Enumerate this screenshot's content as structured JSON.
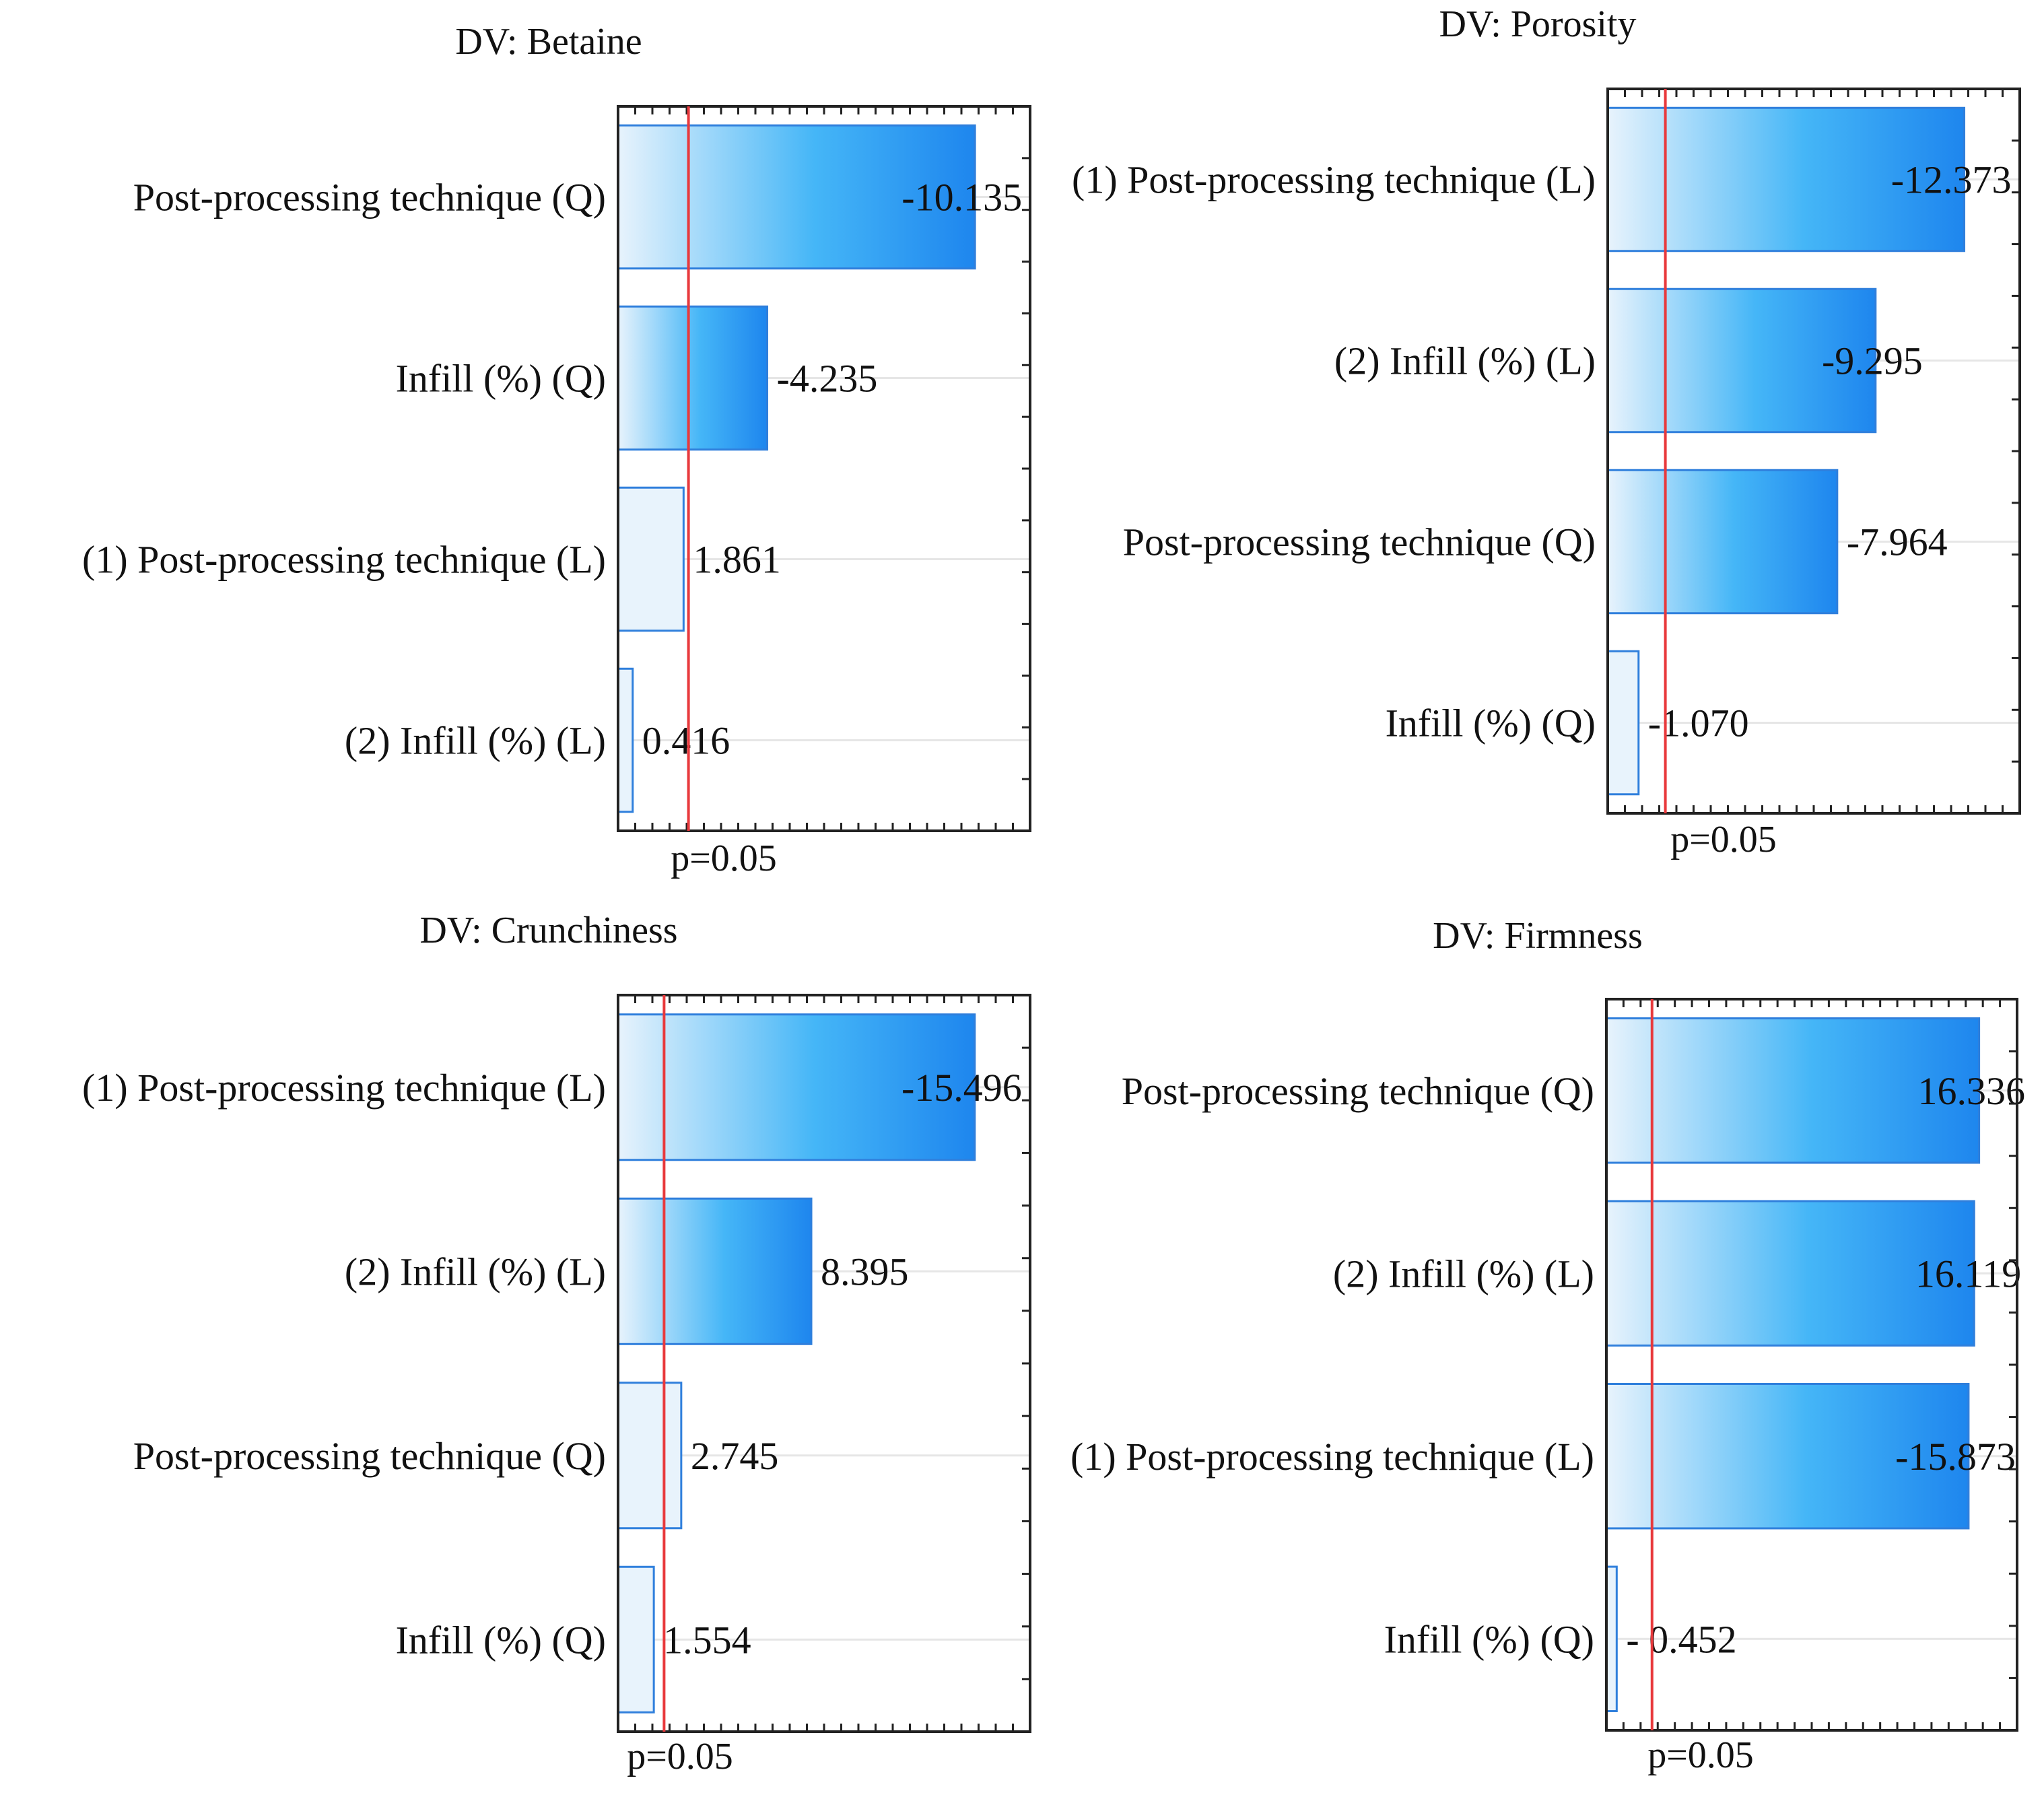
{
  "colors": {
    "bar_light": "#e8f3fc",
    "bar_mid": "#45b6f7",
    "bar_dark": "#1e86ee",
    "bar_stroke": "#2f7fdc",
    "reference_line": "#e8393c",
    "frame": "#222222",
    "gridline": "#e6e6e6"
  },
  "chart_data": [
    {
      "type": "bar",
      "orientation": "horizontal",
      "title": "DV: Betaine",
      "reference_label": "p=0.05",
      "reference_value": 2.0,
      "xlim": [
        0,
        11.7
      ],
      "grid": true,
      "categories": [
        "Post-processing technique (Q)",
        "Infill (%) (Q)",
        "(1) Post-processing technique (L)",
        "(2) Infill (%) (L)"
      ],
      "value_labels": [
        "-10.135",
        "-4.235",
        "1.861",
        "0.416"
      ],
      "values": [
        -10.135,
        -4.235,
        1.861,
        0.416
      ]
    },
    {
      "type": "bar",
      "orientation": "horizontal",
      "title": "DV: Porosity",
      "reference_label": "p=0.05",
      "reference_value": 2.0,
      "xlim": [
        0,
        14.3
      ],
      "grid": true,
      "categories": [
        "(1) Post-processing technique (L)",
        "(2) Infill (%) (L)",
        "Post-processing technique (Q)",
        "Infill (%) (Q)"
      ],
      "value_labels": [
        "-12.373",
        "-9.295",
        "-7.964",
        "-1.070"
      ],
      "values": [
        -12.373,
        -9.295,
        -7.964,
        -1.07
      ]
    },
    {
      "type": "bar",
      "orientation": "horizontal",
      "title": "DV: Crunchiness",
      "reference_label": "p=0.05",
      "reference_value": 2.0,
      "xlim": [
        0,
        17.9
      ],
      "grid": true,
      "categories": [
        "(1) Post-processing technique (L)",
        "(2) Infill (%) (L)",
        "Post-processing technique (Q)",
        "Infill (%) (Q)"
      ],
      "value_labels": [
        "-15.496",
        "8.395",
        "2.745",
        "1.554"
      ],
      "values": [
        -15.496,
        8.395,
        2.745,
        1.554
      ]
    },
    {
      "type": "bar",
      "orientation": "horizontal",
      "title": "DV: Firmness",
      "reference_label": "p=0.05",
      "reference_value": 2.0,
      "xlim": [
        0,
        18.0
      ],
      "grid": true,
      "categories": [
        "Post-processing technique (Q)",
        "(2) Infill (%) (L)",
        "(1) Post-processing technique (L)",
        "Infill (%) (Q)"
      ],
      "value_labels": [
        "16.336",
        "16.119",
        "-15.873",
        "- 0.452"
      ],
      "values": [
        16.336,
        16.119,
        -15.873,
        -0.452
      ]
    }
  ]
}
